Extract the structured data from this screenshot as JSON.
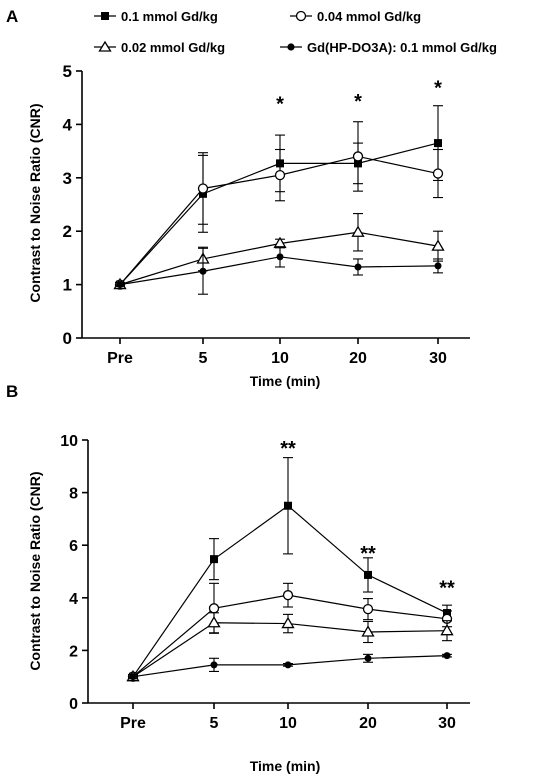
{
  "legend": [
    {
      "label": "0.1 mmol Gd/kg",
      "marker": "square-filled"
    },
    {
      "label": "0.04 mmol Gd/kg",
      "marker": "circle-open"
    },
    {
      "label": "0.02 mmol Gd/kg",
      "marker": "triangle-open"
    },
    {
      "label": "Gd(HP-DO3A): 0.1 mmol Gd/kg",
      "marker": "circle-filled"
    }
  ],
  "chart_data": [
    {
      "panel": "A",
      "type": "line",
      "categories": [
        "Pre",
        "5",
        "10",
        "20",
        "30"
      ],
      "xlabel": "Time (min)",
      "ylabel": "Contrast to Noise Ratio (CNR)",
      "ylim": [
        0,
        5
      ],
      "yticks": [
        "0",
        "1",
        "2",
        "3",
        "4",
        "5"
      ],
      "grid": false,
      "legend_position": "top",
      "annotations": [
        {
          "category": "10",
          "text": "*",
          "y": 4.5
        },
        {
          "category": "20",
          "text": "*",
          "y": 4.55
        },
        {
          "category": "30",
          "text": "*",
          "y": 4.8
        }
      ],
      "series": [
        {
          "name": "0.1 mmol Gd/kg",
          "marker": "square-filled",
          "values": [
            1.0,
            2.7,
            3.27,
            3.27,
            3.65
          ],
          "err": [
            0.04,
            0.72,
            0.53,
            0.38,
            0.7
          ]
        },
        {
          "name": "0.04 mmol Gd/kg",
          "marker": "circle-open",
          "values": [
            1.0,
            2.8,
            3.05,
            3.4,
            3.08
          ],
          "err": [
            0.04,
            0.67,
            0.48,
            0.65,
            0.45
          ]
        },
        {
          "name": "0.02 mmol Gd/kg",
          "marker": "triangle-open",
          "values": [
            1.0,
            1.48,
            1.77,
            1.98,
            1.72
          ],
          "err": [
            0.04,
            0.22,
            0.08,
            0.35,
            0.28
          ]
        },
        {
          "name": "Gd(HP-DO3A): 0.1 mmol Gd/kg",
          "marker": "circle-filled",
          "values": [
            1.0,
            1.25,
            1.52,
            1.33,
            1.35
          ],
          "err": [
            0.04,
            0.43,
            0.19,
            0.15,
            0.13
          ]
        }
      ]
    },
    {
      "panel": "B",
      "type": "line",
      "categories": [
        "Pre",
        "5",
        "10",
        "20",
        "30"
      ],
      "xlabel": "Time (min)",
      "ylabel": "Contrast to Noise Ratio (CNR)",
      "ylim": [
        0,
        10
      ],
      "yticks": [
        "0",
        "2",
        "4",
        "6",
        "8",
        "10"
      ],
      "grid": false,
      "annotations": [
        {
          "category": "10",
          "text": "**",
          "y": 10.0
        },
        {
          "category": "20",
          "text": "**",
          "y": 6.0
        },
        {
          "category": "30",
          "text": "**",
          "y": 4.7
        }
      ],
      "series": [
        {
          "name": "0.1 mmol Gd/kg",
          "marker": "square-filled",
          "values": [
            1.0,
            5.47,
            7.5,
            4.87,
            3.42
          ],
          "err": [
            0.08,
            0.78,
            1.83,
            0.65,
            0.3
          ]
        },
        {
          "name": "0.04 mmol Gd/kg",
          "marker": "circle-open",
          "values": [
            1.0,
            3.6,
            4.1,
            3.57,
            3.2
          ],
          "err": [
            0.08,
            0.95,
            0.45,
            0.4,
            0.3
          ]
        },
        {
          "name": "0.02 mmol Gd/kg",
          "marker": "triangle-open",
          "values": [
            1.0,
            3.05,
            3.02,
            2.7,
            2.75
          ],
          "err": [
            0.08,
            0.38,
            0.35,
            0.4,
            0.38
          ]
        },
        {
          "name": "Gd(HP-DO3A): 0.1 mmol Gd/kg",
          "marker": "circle-filled",
          "values": [
            1.0,
            1.45,
            1.45,
            1.7,
            1.8
          ],
          "err": [
            0.08,
            0.25,
            0.05,
            0.15,
            0.05
          ]
        }
      ]
    }
  ]
}
